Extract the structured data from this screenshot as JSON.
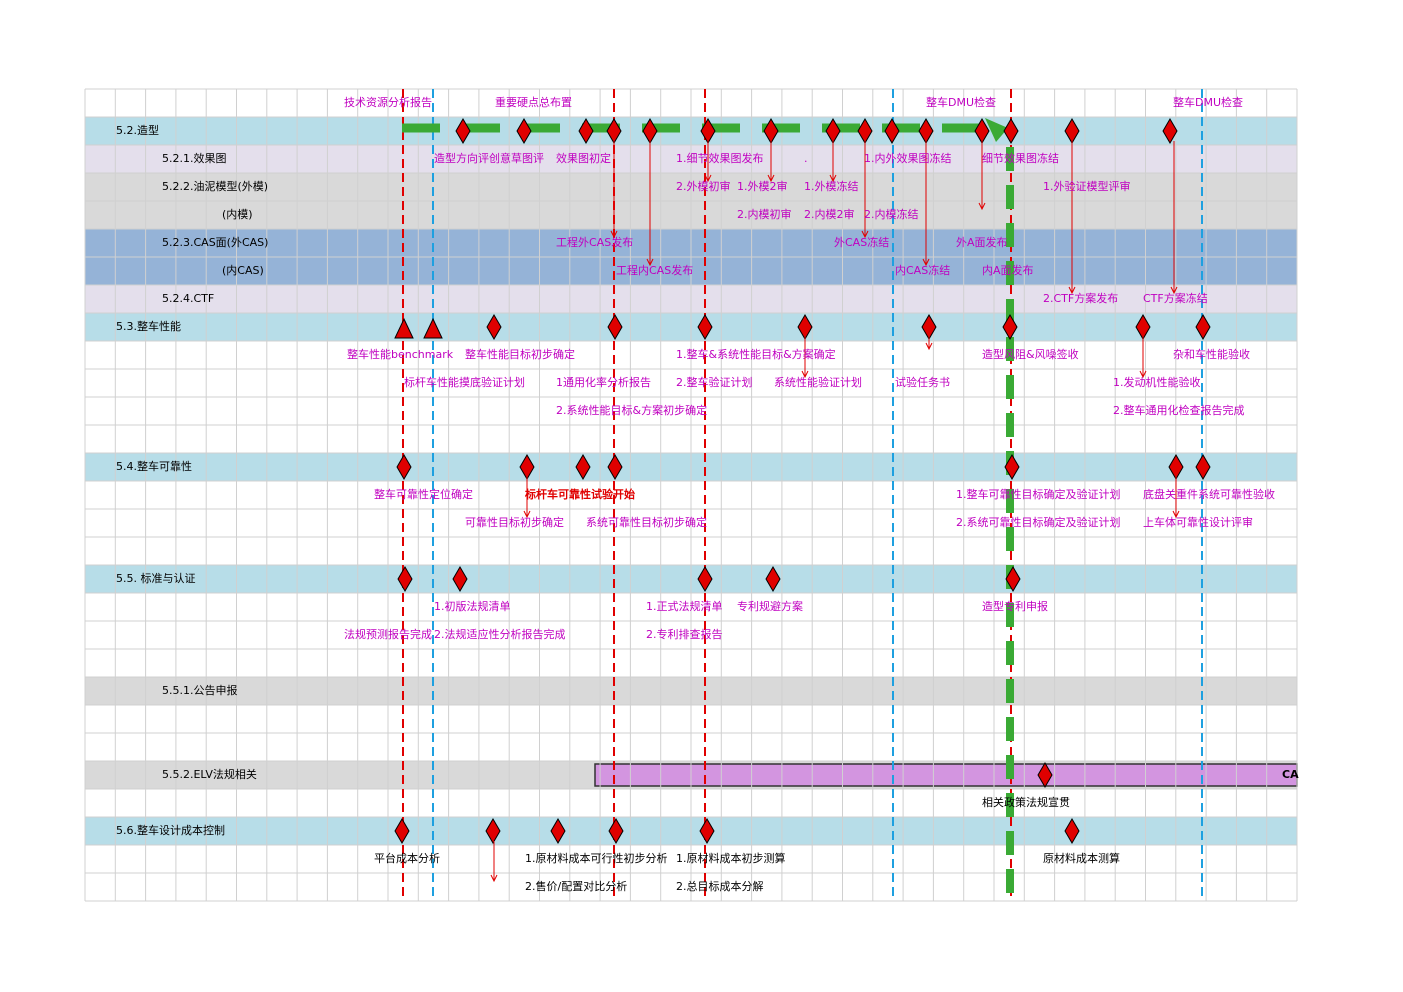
{
  "rows": [
    {
      "notes": [
        "技术资源分析报告",
        "重要硬点总布置",
        "整车DMU检查",
        "整车DMU检查"
      ]
    },
    {
      "label": "5.2.造型",
      "notes": []
    },
    {
      "label": "5.2.1.效果图",
      "notes": [
        "造型方向评创意草图评",
        "效果图初定",
        "1.细节效果图发布",
        ".",
        "1.内外效果图冻结",
        "细节效果图冻结"
      ]
    },
    {
      "label": "5.2.2.油泥模型(外模)",
      "notes": [
        "2.外模初审",
        "1.外模2审",
        "1.外模冻结",
        "1.外验证模型评审"
      ]
    },
    {
      "label": "(内模)",
      "notes": [
        "2.内模初审",
        "2.内模2审",
        "2.内模冻结"
      ]
    },
    {
      "label": "5.2.3.CAS面(外CAS)",
      "notes": [
        "工程外CAS发布",
        "外CAS冻结",
        "外A面发布"
      ]
    },
    {
      "label": "(内CAS)",
      "notes": [
        "工程内CAS发布",
        "内CAS冻结",
        "内A面发布"
      ]
    },
    {
      "label": "5.2.4.CTF",
      "notes": [
        "2.CTF方案发布",
        "CTF方案冻结"
      ]
    },
    {
      "label": "5.3.整车性能",
      "notes": []
    },
    {
      "notes": [
        "整车性能benchmark",
        "整车性能目标初步确定",
        "1.整车&系统性能目标&方案确定",
        "造型风阻&风噪签收",
        "杂和车性能验收"
      ]
    },
    {
      "notes": [
        "标杆车性能摸底验证计划",
        "1通用化率分析报告",
        "2.整车验证计划",
        "系统性能验证计划",
        "试验任务书",
        "1.发动机性能验收"
      ]
    },
    {
      "notes": [
        "2.系统性能目标&方案初步确定",
        "2.整车通用化检查报告完成"
      ]
    },
    {
      "notes": []
    },
    {
      "label": "5.4.整车可靠性",
      "notes": []
    },
    {
      "notes": [
        "整车可靠性定位确定",
        "标杆车可靠性试验开始",
        "1.整车可靠性目标确定及验证计划",
        "底盘关重件系统可靠性验收"
      ]
    },
    {
      "notes": [
        "可靠性目标初步确定",
        "系统可靠性目标初步确定",
        "2.系统可靠性目标确定及验证计划",
        "上车体可靠性设计评审"
      ]
    },
    {
      "notes": []
    },
    {
      "label": "5.5. 标准与认证",
      "notes": []
    },
    {
      "notes": [
        "1.初版法规清单",
        "1.正式法规清单",
        "专利规避方案",
        "造型专利申报"
      ]
    },
    {
      "notes": [
        "法规预测报告完成",
        "2.法规适应性分析报告完成",
        "2.专利排查报告"
      ]
    },
    {
      "notes": []
    },
    {
      "label": "5.5.1.公告申报",
      "notes": []
    },
    {
      "notes": []
    },
    {
      "notes": []
    },
    {
      "label": "5.5.2.ELV法规相关",
      "notes": [
        "CA"
      ]
    },
    {
      "notes": [
        "相关政策法规宣贯"
      ]
    },
    {
      "label": "5.6.整车设计成本控制",
      "notes": []
    },
    {
      "notes": [
        "平台成本分析",
        "1.原材料成本可行性初步分析",
        "1.原材料成本初步测算",
        "原材料成本测算"
      ]
    },
    {
      "notes": [
        "2.售价/配置对比分析",
        "2.总目标成本分解"
      ]
    }
  ]
}
